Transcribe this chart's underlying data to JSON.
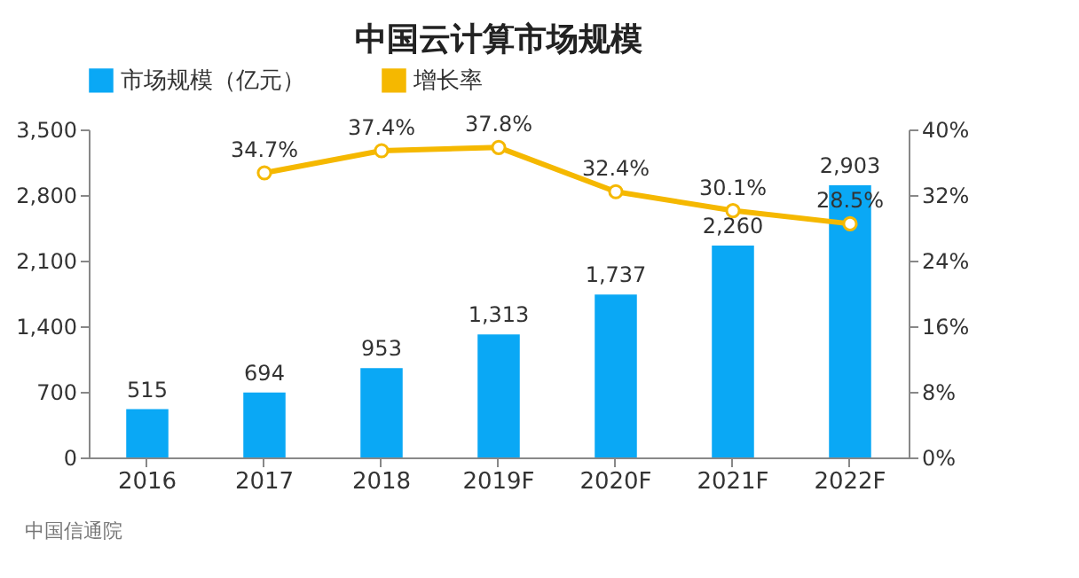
{
  "chart_data": {
    "type": "bar",
    "title": "中国云计算市场规模",
    "categories": [
      "2016",
      "2017",
      "2018",
      "2019F",
      "2020F",
      "2021F",
      "2022F"
    ],
    "series": [
      {
        "name": "市场规模（亿元）",
        "type": "bar",
        "color": "#0aa8f5",
        "values": [
          515,
          694,
          953,
          1313,
          1737,
          2260,
          2903
        ],
        "value_labels": [
          "515",
          "694",
          "953",
          "1,313",
          "1,737",
          "2,260",
          "2,903"
        ]
      },
      {
        "name": "增长率",
        "type": "line",
        "axis": "y2",
        "color": "#f5b800",
        "marker": "circle",
        "values": [
          null,
          34.7,
          37.4,
          37.8,
          32.4,
          30.1,
          28.5
        ],
        "value_labels": [
          null,
          "34.7%",
          "37.4%",
          "37.8%",
          "32.4%",
          "30.1%",
          "28.5%"
        ]
      }
    ],
    "ylim": [
      0,
      3500
    ],
    "yticks": [
      0,
      700,
      {
        "value": 1400,
        "label": "1,400"
      },
      {
        "value": 2100,
        "label": "2,100"
      },
      {
        "value": 2800,
        "label": "2,800"
      },
      {
        "value": 3500,
        "label": "3,500"
      }
    ],
    "y2lim": [
      0,
      40
    ],
    "y2ticks": [
      {
        "value": 0,
        "label": "0%"
      },
      {
        "value": 8,
        "label": "8%"
      },
      {
        "value": 16,
        "label": "16%"
      },
      {
        "value": 24,
        "label": "24%"
      },
      {
        "value": 32,
        "label": "32%"
      },
      {
        "value": 40,
        "label": "40%"
      }
    ],
    "legend": "top",
    "grid": false,
    "annotations": [
      "中国信通院"
    ]
  }
}
